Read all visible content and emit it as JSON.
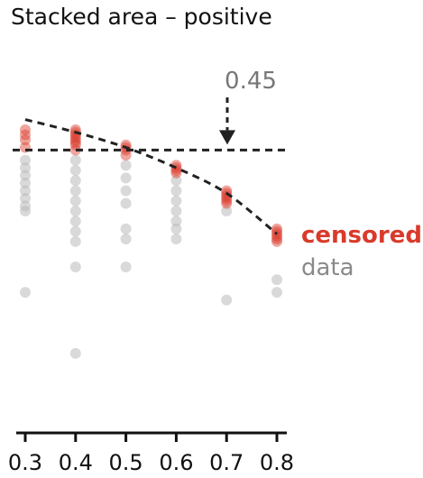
{
  "chart_data": {
    "type": "scatter",
    "title": "Stacked area – positive",
    "x_ticks": [
      "0.3",
      "0.4",
      "0.5",
      "0.6",
      "0.7",
      "0.8"
    ],
    "annotation": "0.45",
    "threshold": 0.45,
    "legend": [
      "censored",
      "data"
    ],
    "colors": {
      "censored": "#d93a2b",
      "data": "#b9b9b9",
      "threshold_line": "#222222",
      "annotation": "#777777"
    },
    "curve": {
      "x": [
        0.3,
        0.4,
        0.5,
        0.6,
        0.7,
        0.8
      ],
      "y": [
        0.51,
        0.485,
        0.455,
        0.415,
        0.365,
        0.285
      ]
    },
    "series": [
      {
        "name": "censored",
        "points": [
          [
            0.3,
            0.455
          ],
          [
            0.3,
            0.47
          ],
          [
            0.3,
            0.48
          ],
          [
            0.3,
            0.49
          ],
          [
            0.4,
            0.45
          ],
          [
            0.4,
            0.46
          ],
          [
            0.4,
            0.465
          ],
          [
            0.4,
            0.47
          ],
          [
            0.4,
            0.475
          ],
          [
            0.4,
            0.48
          ],
          [
            0.4,
            0.485
          ],
          [
            0.4,
            0.49
          ],
          [
            0.5,
            0.44
          ],
          [
            0.5,
            0.45
          ],
          [
            0.5,
            0.455
          ],
          [
            0.5,
            0.46
          ],
          [
            0.6,
            0.405
          ],
          [
            0.6,
            0.41
          ],
          [
            0.6,
            0.415
          ],
          [
            0.6,
            0.42
          ],
          [
            0.7,
            0.345
          ],
          [
            0.7,
            0.35
          ],
          [
            0.7,
            0.355
          ],
          [
            0.7,
            0.36
          ],
          [
            0.7,
            0.365
          ],
          [
            0.7,
            0.37
          ],
          [
            0.8,
            0.27
          ],
          [
            0.8,
            0.275
          ],
          [
            0.8,
            0.28
          ],
          [
            0.8,
            0.285
          ],
          [
            0.8,
            0.29
          ],
          [
            0.8,
            0.295
          ]
        ]
      },
      {
        "name": "data",
        "points": [
          [
            0.3,
            0.43
          ],
          [
            0.3,
            0.415
          ],
          [
            0.3,
            0.4
          ],
          [
            0.3,
            0.385
          ],
          [
            0.3,
            0.37
          ],
          [
            0.3,
            0.355
          ],
          [
            0.3,
            0.34
          ],
          [
            0.3,
            0.33
          ],
          [
            0.3,
            0.17
          ],
          [
            0.4,
            0.43
          ],
          [
            0.4,
            0.41
          ],
          [
            0.4,
            0.39
          ],
          [
            0.4,
            0.37
          ],
          [
            0.4,
            0.35
          ],
          [
            0.4,
            0.33
          ],
          [
            0.4,
            0.31
          ],
          [
            0.4,
            0.29
          ],
          [
            0.4,
            0.27
          ],
          [
            0.4,
            0.22
          ],
          [
            0.4,
            0.05
          ],
          [
            0.5,
            0.42
          ],
          [
            0.5,
            0.395
          ],
          [
            0.5,
            0.37
          ],
          [
            0.5,
            0.345
          ],
          [
            0.5,
            0.295
          ],
          [
            0.5,
            0.275
          ],
          [
            0.5,
            0.22
          ],
          [
            0.6,
            0.39
          ],
          [
            0.6,
            0.37
          ],
          [
            0.6,
            0.35
          ],
          [
            0.6,
            0.33
          ],
          [
            0.6,
            0.31
          ],
          [
            0.6,
            0.295
          ],
          [
            0.6,
            0.275
          ],
          [
            0.7,
            0.33
          ],
          [
            0.7,
            0.155
          ],
          [
            0.8,
            0.195
          ],
          [
            0.8,
            0.17
          ]
        ]
      }
    ]
  }
}
